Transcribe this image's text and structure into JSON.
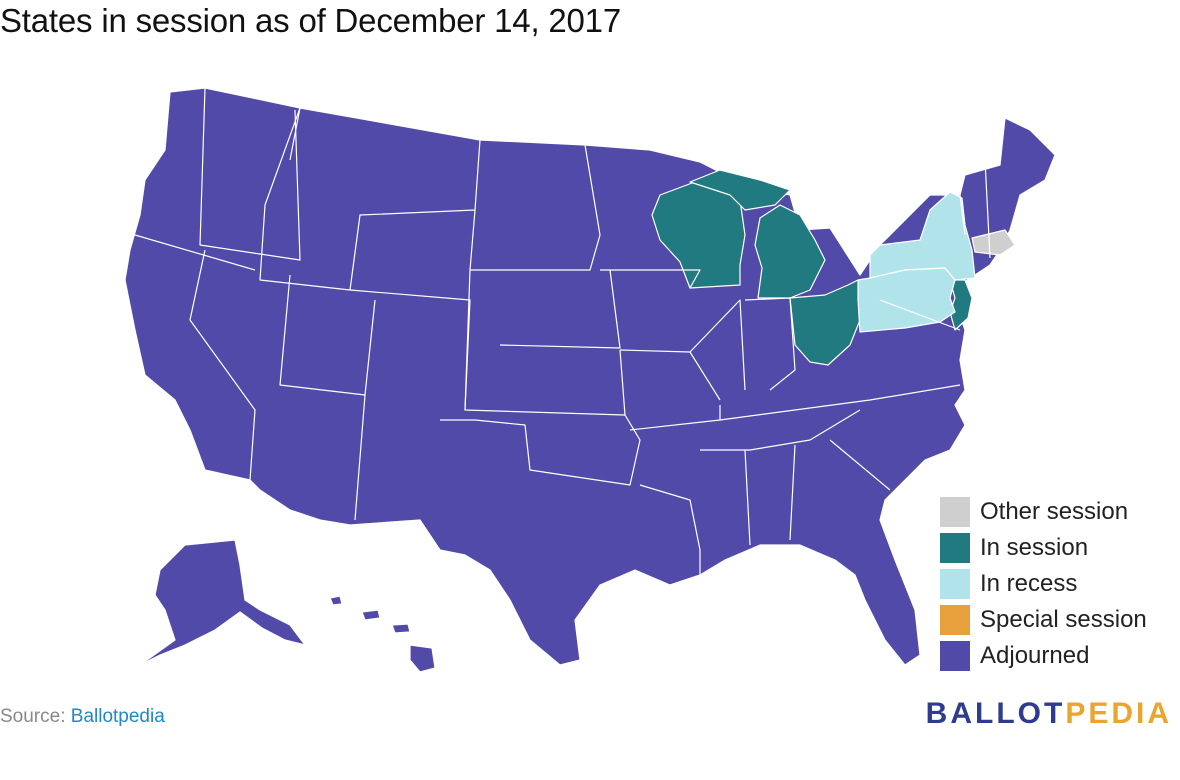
{
  "title": "States in session as of December 14, 2017",
  "colors": {
    "other_session": "#cfcfcf",
    "in_session": "#217a7f",
    "in_recess": "#b1e4ea",
    "special_session": "#e8a03c",
    "adjourned": "#524aa8",
    "border": "#ffffff"
  },
  "legend": [
    {
      "label": "Other session",
      "color": "#cfcfcf"
    },
    {
      "label": "In session",
      "color": "#217a7f"
    },
    {
      "label": "In recess",
      "color": "#b1e4ea"
    },
    {
      "label": "Special session",
      "color": "#e8a03c"
    },
    {
      "label": "Adjourned",
      "color": "#524aa8"
    }
  ],
  "states": {
    "in_session": [
      "Wisconsin",
      "Michigan",
      "Ohio",
      "New Jersey"
    ],
    "in_recess": [
      "New York",
      "Pennsylvania"
    ],
    "other_session": [
      "Massachusetts"
    ],
    "special_session": []
  },
  "footer": {
    "source_prefix": "Source: ",
    "source_name": "Ballotpedia",
    "logo_part1": "BALLOT",
    "logo_part2": "PEDIA"
  }
}
